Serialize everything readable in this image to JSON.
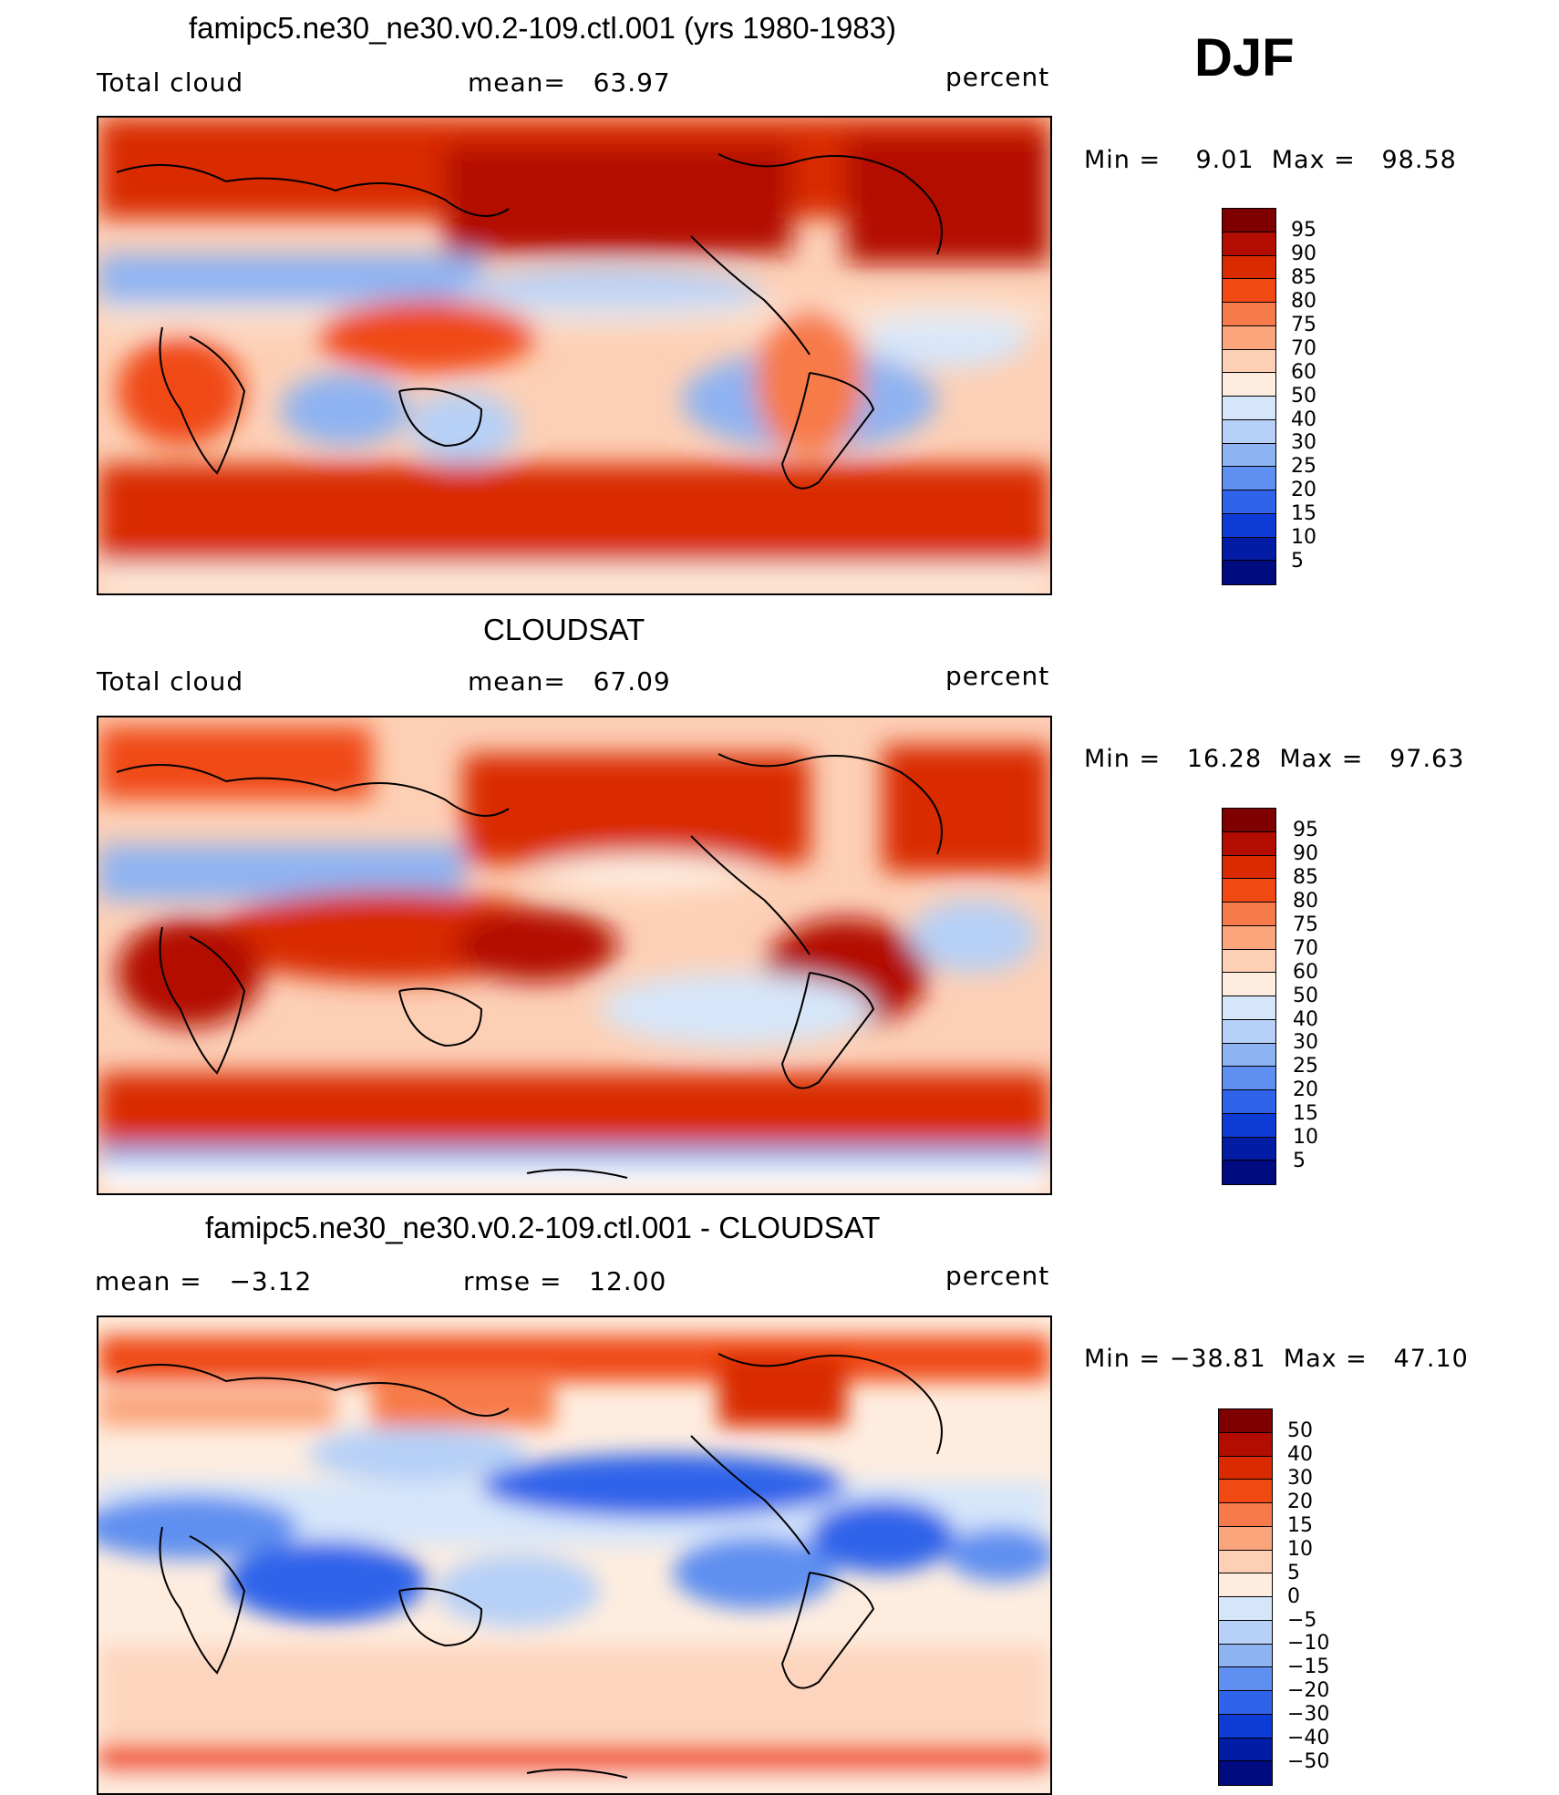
{
  "season": "DJF",
  "panels": [
    {
      "title": "famipc5.ne30_ne30.v0.2-109.ctl.001 (yrs 1980-1983)",
      "left_label": "Total cloud",
      "center_label": "mean=   63.97",
      "units": "percent",
      "minmax": "Min =    9.01  Max =   98.58",
      "colorbar": {
        "labels": [
          "95",
          "90",
          "85",
          "80",
          "75",
          "70",
          "60",
          "50",
          "40",
          "30",
          "25",
          "20",
          "15",
          "10",
          "5"
        ],
        "colors": [
          "#7f0000",
          "#b30c00",
          "#d92a00",
          "#f04a12",
          "#f77a4a",
          "#fba57d",
          "#fdd0b6",
          "#feeddf",
          "#d6e6fa",
          "#b6d0f7",
          "#8eb3f2",
          "#5f8ff0",
          "#2e63ea",
          "#0c3bd6",
          "#031ca6",
          "#000b80"
        ]
      }
    },
    {
      "title": "CLOUDSAT",
      "left_label": "Total cloud",
      "center_label": "mean=   67.09",
      "units": "percent",
      "minmax": "Min =   16.28  Max =   97.63",
      "colorbar": {
        "labels": [
          "95",
          "90",
          "85",
          "80",
          "75",
          "70",
          "60",
          "50",
          "40",
          "30",
          "25",
          "20",
          "15",
          "10",
          "5"
        ],
        "colors": [
          "#7f0000",
          "#b30c00",
          "#d92a00",
          "#f04a12",
          "#f77a4a",
          "#fba57d",
          "#fdd0b6",
          "#feeddf",
          "#d6e6fa",
          "#b6d0f7",
          "#8eb3f2",
          "#5f8ff0",
          "#2e63ea",
          "#0c3bd6",
          "#031ca6",
          "#000b80"
        ]
      }
    },
    {
      "title": "famipc5.ne30_ne30.v0.2-109.ctl.001 - CLOUDSAT",
      "left_label": "mean =   −3.12",
      "center_label": "rmse =   12.00",
      "units": "percent",
      "minmax": "Min = −38.81  Max =   47.10",
      "colorbar": {
        "labels": [
          "50",
          "40",
          "30",
          "20",
          "15",
          "10",
          "5",
          "0",
          "−5",
          "−10",
          "−15",
          "−20",
          "−30",
          "−40",
          "−50"
        ],
        "colors": [
          "#7f0000",
          "#b30c00",
          "#d92a00",
          "#f04a12",
          "#f77a4a",
          "#fba57d",
          "#fdd0b6",
          "#feeddf",
          "#d6e6fa",
          "#b6d0f7",
          "#8eb3f2",
          "#5f8ff0",
          "#2e63ea",
          "#0c3bd6",
          "#031ca6",
          "#000b80"
        ]
      }
    }
  ]
}
